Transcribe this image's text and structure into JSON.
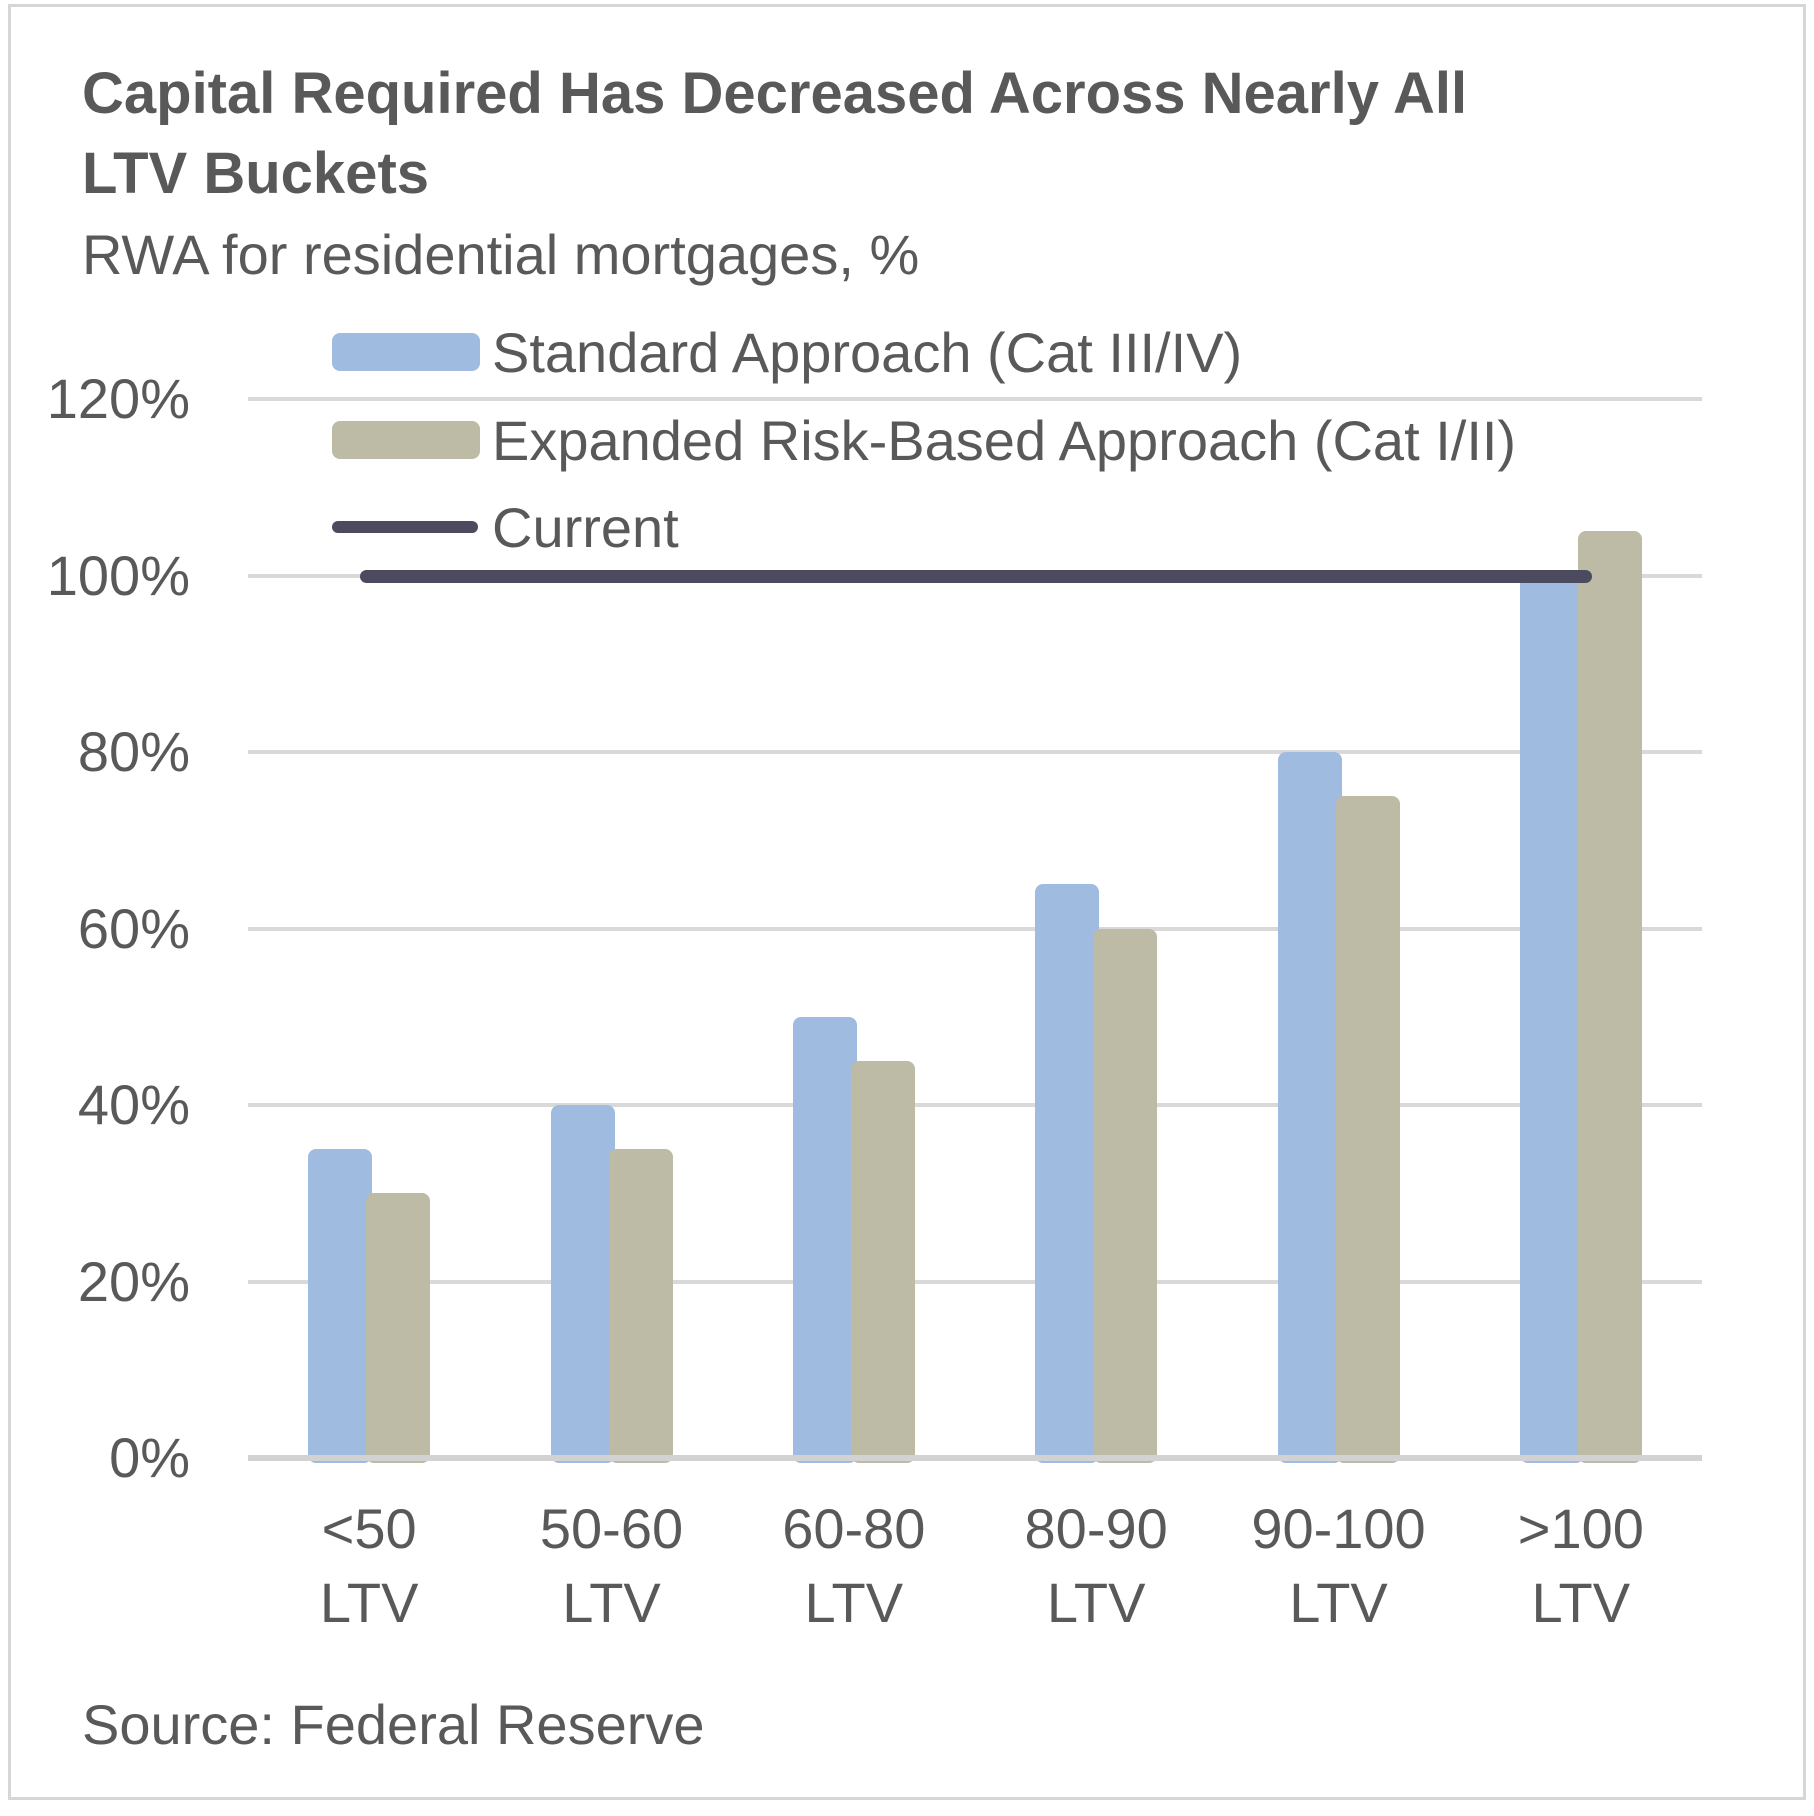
{
  "chart_data": {
    "type": "bar",
    "title": "Capital Required Has Decreased Across Nearly All LTV Buckets",
    "subtitle": "RWA for residential mortgages, %",
    "categories": [
      "<50 LTV",
      "50-60 LTV",
      "60-80 LTV",
      "80-90 LTV",
      "90-100 LTV",
      ">100 LTV"
    ],
    "category_lines": [
      [
        "<50",
        "LTV"
      ],
      [
        "50-60",
        "LTV"
      ],
      [
        "60-80",
        "LTV"
      ],
      [
        "80-90",
        "LTV"
      ],
      [
        "90-100",
        "LTV"
      ],
      [
        ">100",
        "LTV"
      ]
    ],
    "series": [
      {
        "name": "Standard Approach (Cat III/IV)",
        "color": "#A0BBE0",
        "values": [
          35,
          40,
          50,
          65,
          80,
          100
        ]
      },
      {
        "name": "Expanded Risk-Based Approach (Cat I/II)",
        "color": "#BDBAA5",
        "values": [
          30,
          35,
          45,
          60,
          75,
          105
        ]
      }
    ],
    "reference_line": {
      "name": "Current",
      "value": 100,
      "color": "#4C4A5F"
    },
    "y_axis": {
      "tick_labels": [
        "120%",
        "100%",
        "80%",
        "60%",
        "40%",
        "20%",
        "0%"
      ],
      "min": 0,
      "max": 120,
      "unit": "%",
      "grid": true
    },
    "legend_position": "top-left"
  },
  "colors": {
    "text": "#595959",
    "gridline": "#D9D9D9",
    "axis_line": "#D2D2D2",
    "frame_border": "#D6D6D6",
    "background": "#FFFFFF"
  },
  "source": {
    "text": "Source: Federal Reserve"
  }
}
